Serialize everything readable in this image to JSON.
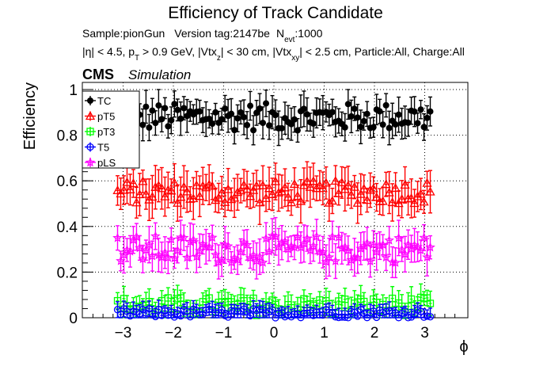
{
  "chart_data": {
    "type": "scatter",
    "title": "Efficiency of Track Candidate",
    "subtitle_line1": {
      "sample": "Sample:pionGun",
      "version": "Version tag:2147be",
      "nevt_prefix": "N",
      "nevt_sub": "evt",
      "nevt_value": ":1000"
    },
    "subtitle_line2": {
      "eta": "|η| < 4.5, p",
      "pt_sub": "T",
      "pt_rest": " > 0.9 GeV, |Vtx",
      "vz_sub": "z",
      "vz_rest": "| < 30 cm, |Vtx",
      "vxy_sub": "xy",
      "vxy_rest": "| < 2.5 cm, Particle:All, Charge:All"
    },
    "cms_label": "CMS",
    "simulation_label": "Simulation",
    "xlabel": "ϕ",
    "ylabel": "Efficiency",
    "xlim": [
      -3.6,
      3.6
    ],
    "ylim": [
      0,
      1.02
    ],
    "x_ticks": [
      -3,
      -2,
      -1,
      0,
      1,
      2,
      3
    ],
    "x_tick_labels": [
      "−3",
      "−2",
      "−1",
      "0",
      "1",
      "2",
      "3"
    ],
    "y_ticks": [
      0,
      0.2,
      0.4,
      0.6,
      0.8,
      1
    ],
    "y_tick_labels": [
      "0",
      "0.2",
      "0.4",
      "0.6",
      "0.8",
      "1"
    ],
    "grid": true,
    "legend_position": "top-left",
    "n_bins": 100,
    "x_range": [
      -3.1416,
      3.1416
    ],
    "series": [
      {
        "name": "TC",
        "color": "#000000",
        "marker": "filled-circle",
        "mean": 0.88,
        "spread": 0.06,
        "error": 0.065
      },
      {
        "name": "pT5",
        "color": "#ff0000",
        "marker": "open-triangle",
        "mean": 0.55,
        "spread": 0.05,
        "error": 0.08
      },
      {
        "name": "pT3",
        "color": "#00ff00",
        "marker": "open-square",
        "mean": 0.05,
        "spread": 0.04,
        "error": 0.05
      },
      {
        "name": "T5",
        "color": "#0000ff",
        "marker": "open-circle",
        "mean": 0.02,
        "spread": 0.02,
        "error": 0.035
      },
      {
        "name": "pLS",
        "color": "#ff00ff",
        "marker": "open-star",
        "mean": 0.3,
        "spread": 0.06,
        "error": 0.07
      }
    ]
  }
}
